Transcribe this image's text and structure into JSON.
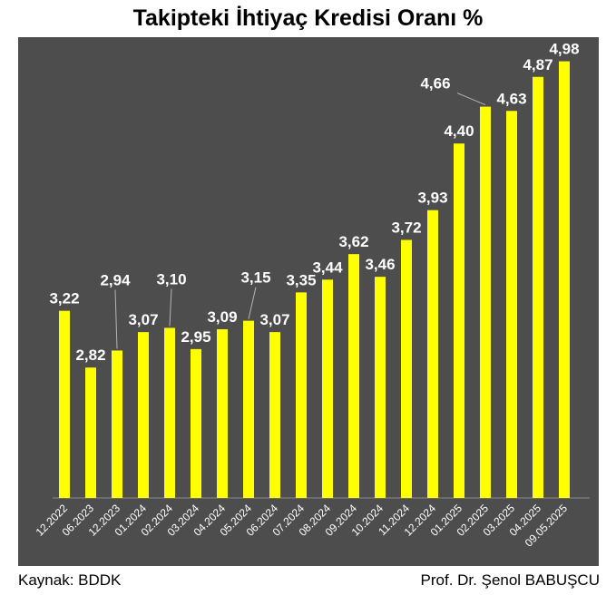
{
  "chart_data": {
    "type": "bar",
    "title": "Takipteki İhtiyaç Kredisi Oranı %",
    "categories": [
      "12.2022",
      "06.2023",
      "12.2023",
      "01.2024",
      "02.2024",
      "03.2024",
      "04.2024",
      "05.2024",
      "06.2024",
      "07.2024",
      "08.2024",
      "09.2024",
      "10.2024",
      "11.2024",
      "12.2024",
      "01.2025",
      "02.2025",
      "03.2025",
      "04.2025",
      "09.05.2025"
    ],
    "values": [
      3.22,
      2.82,
      2.94,
      3.07,
      3.1,
      2.95,
      3.09,
      3.15,
      3.07,
      3.35,
      3.44,
      3.62,
      3.46,
      3.72,
      3.93,
      4.4,
      4.66,
      4.63,
      4.87,
      4.98
    ],
    "value_labels": [
      "3,22",
      "2,82",
      "2,94",
      "3,07",
      "3,10",
      "2,95",
      "3,09",
      "3,15",
      "3,07",
      "3,35",
      "3,44",
      "3,62",
      "3,46",
      "3,72",
      "3,93",
      "4,40",
      "4,66",
      "4,63",
      "4,87",
      "4,98"
    ],
    "ylim": [
      1.9,
      5.15
    ],
    "grid": false,
    "legend": "none",
    "bar_color": "#ffff00",
    "plot_background": "#4d4d4d",
    "label_color": "#ffffff"
  },
  "footer": {
    "source": "Kaynak: BDDK",
    "author": "Prof. Dr. Şenol BABUŞCU"
  }
}
